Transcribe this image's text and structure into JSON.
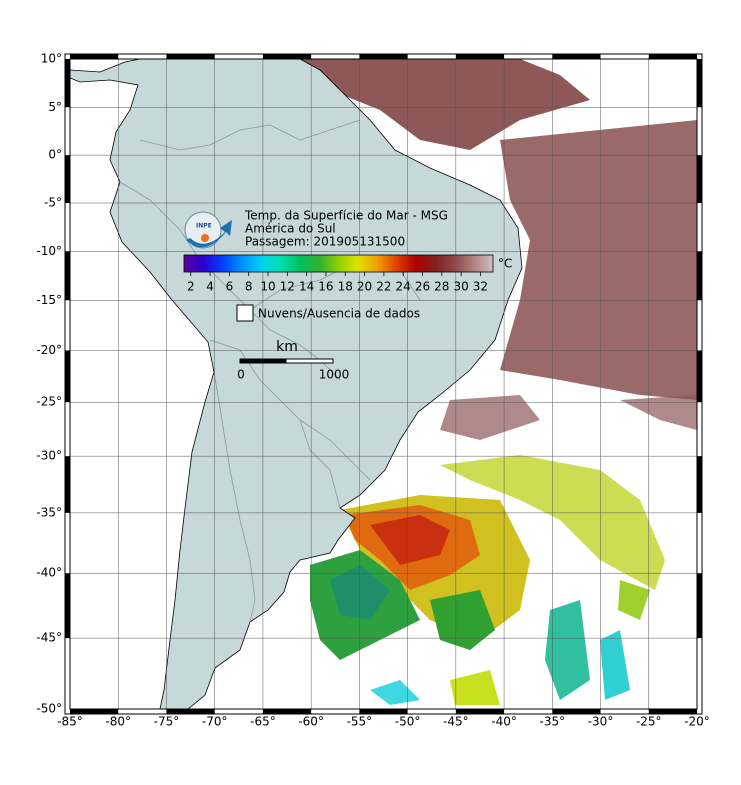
{
  "map": {
    "type": "map",
    "title": "Temp. da Superfície do Mar - MSG",
    "subtitle": "América do Sul",
    "pass_label": "Passagem: 201905131500",
    "logo_text": "INPE",
    "xlim": [
      -85,
      -20
    ],
    "ylim": [
      -50,
      10
    ],
    "grid": true,
    "xticks": [
      {
        "value": -85,
        "label": "-85°"
      },
      {
        "value": -80,
        "label": "-80°"
      },
      {
        "value": -75,
        "label": "-75°"
      },
      {
        "value": -70,
        "label": "-70°"
      },
      {
        "value": -65,
        "label": "-65°"
      },
      {
        "value": -60,
        "label": "-60°"
      },
      {
        "value": -55,
        "label": "-55°"
      },
      {
        "value": -50,
        "label": "-50°"
      },
      {
        "value": -45,
        "label": "-45°"
      },
      {
        "value": -40,
        "label": "-40°"
      },
      {
        "value": -35,
        "label": "-35°"
      },
      {
        "value": -30,
        "label": "-30°"
      },
      {
        "value": -25,
        "label": "-25°"
      },
      {
        "value": -20,
        "label": "-20°"
      }
    ],
    "yticks": [
      {
        "value": 10,
        "label": "10°"
      },
      {
        "value": 5,
        "label": "5°"
      },
      {
        "value": 0,
        "label": "0°"
      },
      {
        "value": -5,
        "label": "-5°"
      },
      {
        "value": -10,
        "label": "-10°"
      },
      {
        "value": -15,
        "label": "-15°"
      },
      {
        "value": -20,
        "label": "-20°"
      },
      {
        "value": -25,
        "label": "-25°"
      },
      {
        "value": -30,
        "label": "-30°"
      },
      {
        "value": -35,
        "label": "-35°"
      },
      {
        "value": -40,
        "label": "-40°"
      },
      {
        "value": -45,
        "label": "-45°"
      },
      {
        "value": -50,
        "label": "-50°"
      }
    ],
    "colorbar": {
      "unit": "°C",
      "lim": [
        1.3,
        33.3
      ],
      "ticks": [
        2,
        4,
        6,
        8,
        10,
        12,
        14,
        16,
        18,
        20,
        22,
        24,
        26,
        28,
        30,
        32
      ],
      "colors": [
        "#5a00a0",
        "#2a00d0",
        "#0040ff",
        "#0090ff",
        "#00d0f0",
        "#00e0b0",
        "#00c060",
        "#30b030",
        "#90d000",
        "#e0e000",
        "#f0a000",
        "#e04000",
        "#b00000",
        "#802020",
        "#904848",
        "#b08080",
        "#d0c0c0"
      ]
    },
    "legend_label": "Nuvens/Ausencia de dados",
    "scale_bar": {
      "unit": "km",
      "ticks": [
        0,
        1000
      ]
    }
  }
}
